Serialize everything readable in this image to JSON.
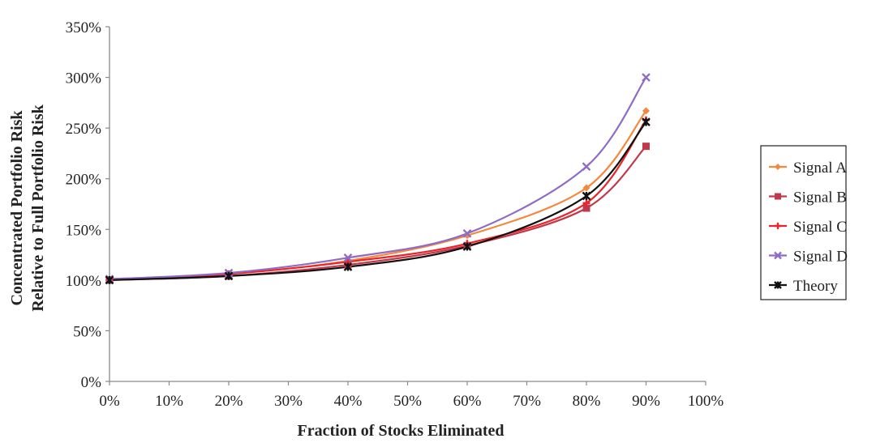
{
  "chart_data": {
    "type": "line",
    "title": "",
    "xlabel": "Fraction of Stocks Eliminated",
    "ylabel_lines": [
      "Concentrated Portfolio Risk",
      "Relative to Full Portfolio Risk"
    ],
    "xlim": [
      0,
      100
    ],
    "ylim": [
      0,
      350
    ],
    "x_ticks": [
      0,
      10,
      20,
      30,
      40,
      50,
      60,
      70,
      80,
      90,
      100
    ],
    "x_tick_labels": [
      "0%",
      "10%",
      "20%",
      "30%",
      "40%",
      "50%",
      "60%",
      "70%",
      "80%",
      "90%",
      "100%"
    ],
    "y_ticks": [
      0,
      50,
      100,
      150,
      200,
      250,
      300,
      350
    ],
    "y_tick_labels": [
      "0%",
      "50%",
      "100%",
      "150%",
      "200%",
      "250%",
      "300%",
      "350%"
    ],
    "grid": false,
    "legend_position": "right",
    "x": [
      0,
      20,
      40,
      60,
      80,
      90
    ],
    "series": [
      {
        "name": "Signal A",
        "values": [
          101,
          106,
          119,
          144,
          191,
          267
        ],
        "color": "#f5883a",
        "marker": "diamond"
      },
      {
        "name": "Signal B",
        "values": [
          100,
          104,
          115,
          134,
          171,
          232
        ],
        "color": "#c0394b",
        "marker": "square"
      },
      {
        "name": "Signal C",
        "values": [
          100,
          106,
          118,
          136,
          176,
          258
        ],
        "color": "#e8252a",
        "marker": "plus"
      },
      {
        "name": "Signal D",
        "values": [
          101,
          107,
          122,
          146,
          212,
          300
        ],
        "color": "#8e6bc4",
        "marker": "x"
      },
      {
        "name": "Theory",
        "values": [
          100,
          104,
          113,
          133,
          183,
          256
        ],
        "color": "#111111",
        "marker": "star"
      }
    ]
  }
}
